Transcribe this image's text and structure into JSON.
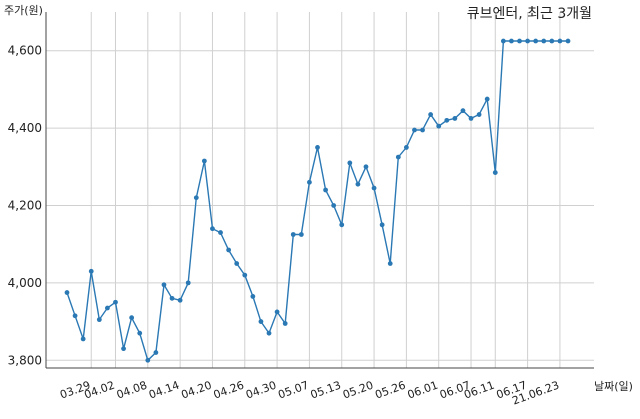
{
  "chart_data": {
    "type": "line",
    "title": "큐브엔터, 최근 3개월",
    "ylabel": "주가(원)",
    "xlabel": "날짜(일)",
    "ylim": [
      3780,
      4700
    ],
    "yticks": [
      3800,
      4000,
      4200,
      4400,
      4600
    ],
    "ytick_labels": [
      "3,800",
      "4,000",
      "4,200",
      "4,400",
      "4,600"
    ],
    "xtick_labels": [
      "03.29",
      "04.02",
      "04.08",
      "04.14",
      "04.20",
      "04.26",
      "04.30",
      "05.07",
      "05.13",
      "05.20",
      "05.26",
      "06.01",
      "06.07",
      "06.11",
      "06.17",
      "21.06.23"
    ],
    "xtick_indices": [
      3,
      6,
      10,
      14,
      18,
      22,
      26,
      30,
      34,
      38,
      42,
      46,
      50,
      53,
      57,
      61
    ],
    "grid": true,
    "line_color": "#2a78b4",
    "series": [
      {
        "values": [
          3975,
          3915,
          3855,
          4030,
          3905,
          3935,
          3950,
          3830,
          3910,
          3870,
          3800,
          3820,
          3995,
          3960,
          3955,
          4000,
          4220,
          4315,
          4140,
          4130,
          4085,
          4050,
          4020,
          3965,
          3900,
          3870,
          3925,
          3895,
          4125,
          4125,
          4260,
          4350,
          4240,
          4200,
          4150,
          4310,
          4255,
          4300,
          4245,
          4150,
          4050,
          4325,
          4350,
          4395,
          4395,
          4435,
          4405,
          4420,
          4425,
          4445,
          4425,
          4435,
          4475,
          4285,
          4625,
          4625,
          4625,
          4625,
          4625,
          4625,
          4625,
          4625,
          4625
        ]
      }
    ]
  }
}
